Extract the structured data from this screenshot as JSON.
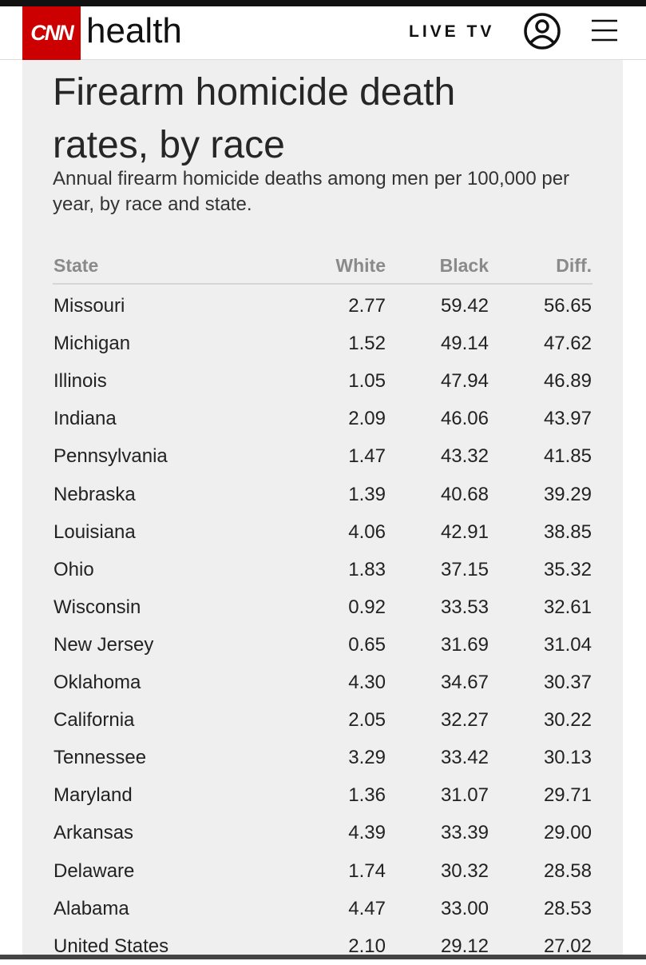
{
  "header": {
    "logo": "CNN",
    "section": "health",
    "live": "LIVE TV"
  },
  "article": {
    "title": "Firearm homicide death rates, by race",
    "subtitle": "Annual firearm homicide deaths among men per 100,000 per year, by race and state."
  },
  "table": {
    "columns": [
      "State",
      "White",
      "Black",
      "Diff."
    ],
    "rows": [
      [
        "Missouri",
        "2.77",
        "59.42",
        "56.65"
      ],
      [
        "Michigan",
        "1.52",
        "49.14",
        "47.62"
      ],
      [
        "Illinois",
        "1.05",
        "47.94",
        "46.89"
      ],
      [
        "Indiana",
        "2.09",
        "46.06",
        "43.97"
      ],
      [
        "Pennsylvania",
        "1.47",
        "43.32",
        "41.85"
      ],
      [
        "Nebraska",
        "1.39",
        "40.68",
        "39.29"
      ],
      [
        "Louisiana",
        "4.06",
        "42.91",
        "38.85"
      ],
      [
        "Ohio",
        "1.83",
        "37.15",
        "35.32"
      ],
      [
        "Wisconsin",
        "0.92",
        "33.53",
        "32.61"
      ],
      [
        "New Jersey",
        "0.65",
        "31.69",
        "31.04"
      ],
      [
        "Oklahoma",
        "4.30",
        "34.67",
        "30.37"
      ],
      [
        "California",
        "2.05",
        "32.27",
        "30.22"
      ],
      [
        "Tennessee",
        "3.29",
        "33.42",
        "30.13"
      ],
      [
        "Maryland",
        "1.36",
        "31.07",
        "29.71"
      ],
      [
        "Arkansas",
        "4.39",
        "33.39",
        "29.00"
      ],
      [
        "Delaware",
        "1.74",
        "30.32",
        "28.58"
      ],
      [
        "Alabama",
        "4.47",
        "33.00",
        "28.53"
      ],
      [
        "United States",
        "2.10",
        "29.12",
        "27.02"
      ]
    ]
  }
}
